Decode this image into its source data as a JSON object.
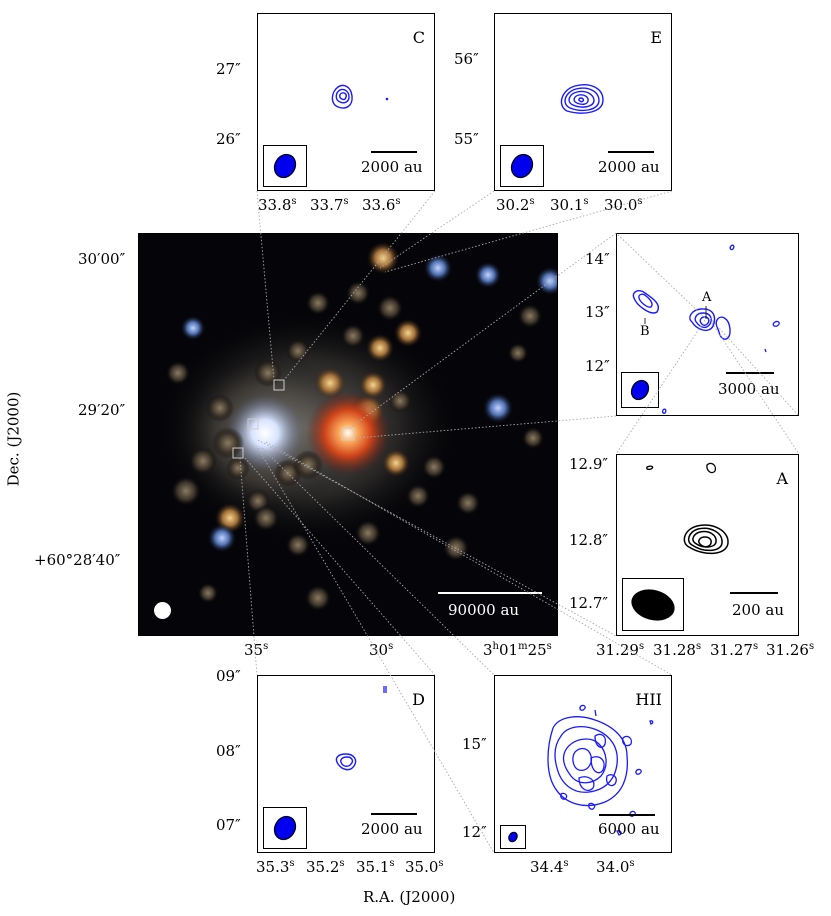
{
  "axes": {
    "dec_label": "Dec. (J2000)",
    "ra_label": "R.A. (J2000)"
  },
  "main": {
    "ra_ticks": [
      "35^s",
      "30^s",
      "3^h01^m25^s"
    ],
    "dec_ticks": [
      "30′00″",
      "29′20″",
      "+60°28′40″"
    ],
    "scalebar": "90000 au"
  },
  "panels": {
    "C": {
      "label": "C",
      "scalebar": "2000 au",
      "dec_ticks": [
        "27″",
        "26″"
      ],
      "ra_ticks": [
        "33.8^s",
        "33.7^s",
        "33.6^s"
      ]
    },
    "E": {
      "label": "E",
      "scalebar": "2000 au",
      "dec_ticks": [
        "56″",
        "55″"
      ],
      "ra_ticks": [
        "30.2^s",
        "30.1^s",
        "30.0^s"
      ]
    },
    "B": {
      "label_a": "A",
      "label_b": "B",
      "scalebar": "3000 au",
      "dec_ticks": [
        "14″",
        "13″",
        "12″"
      ]
    },
    "A": {
      "label": "A",
      "scalebar": "200 au",
      "dec_ticks": [
        "12.9″",
        "12.8″",
        "12.7″"
      ],
      "ra_ticks": [
        "31.29^s",
        "31.28^s",
        "31.27^s",
        "31.26^s"
      ]
    },
    "D": {
      "label": "D",
      "scalebar": "2000 au",
      "dec_ticks": [
        "09″",
        "08″",
        "07″"
      ],
      "ra_ticks": [
        "35.3^s",
        "35.2^s",
        "35.1^s",
        "35.0^s"
      ]
    },
    "HII": {
      "label": "HII",
      "scalebar": "6000 au",
      "dec_ticks": [
        "15″",
        "12″"
      ],
      "ra_ticks": [
        "34.4^s",
        "34.0^s"
      ]
    }
  },
  "colors": {
    "contour_blue": "#1a1aff",
    "contour_black": "#000000",
    "beam_fill_blue": "#0000ee",
    "leader_line": "#aaaaaa"
  }
}
